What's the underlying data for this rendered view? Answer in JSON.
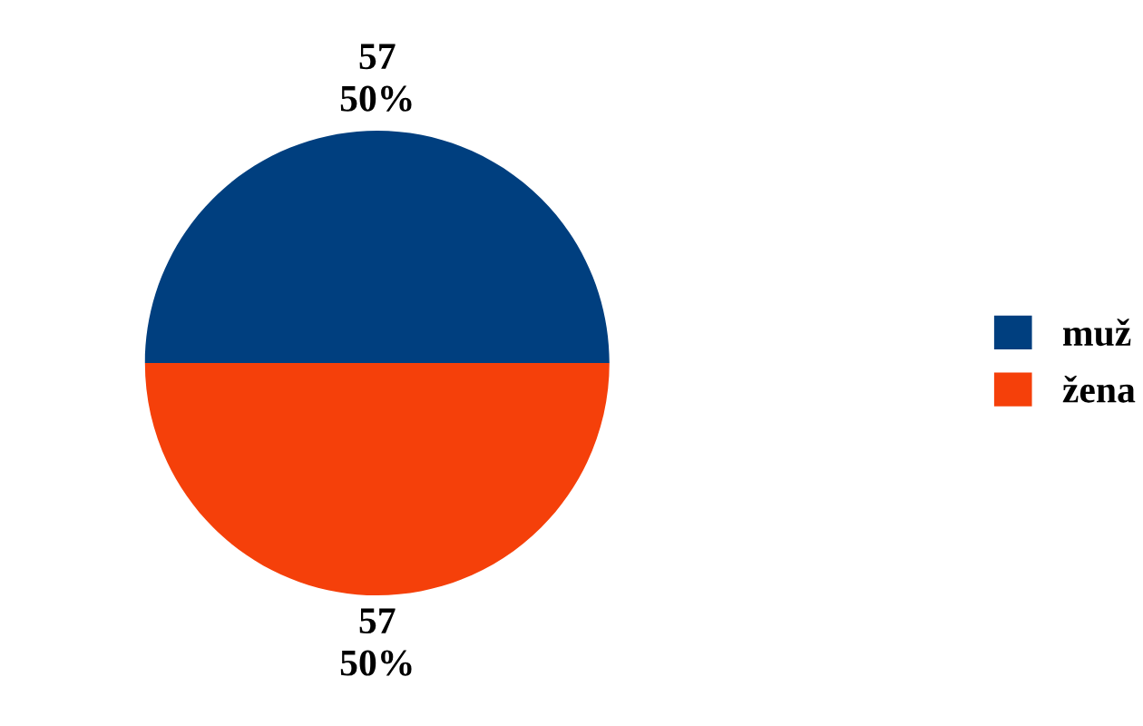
{
  "chart_data": {
    "type": "pie",
    "categories": [
      "muž",
      "žena"
    ],
    "values": [
      57,
      57
    ],
    "colors": [
      "#003f7f",
      "#f5400a"
    ],
    "value_labels": [
      "57\n50%",
      "57\n50%"
    ],
    "legend": "right"
  }
}
